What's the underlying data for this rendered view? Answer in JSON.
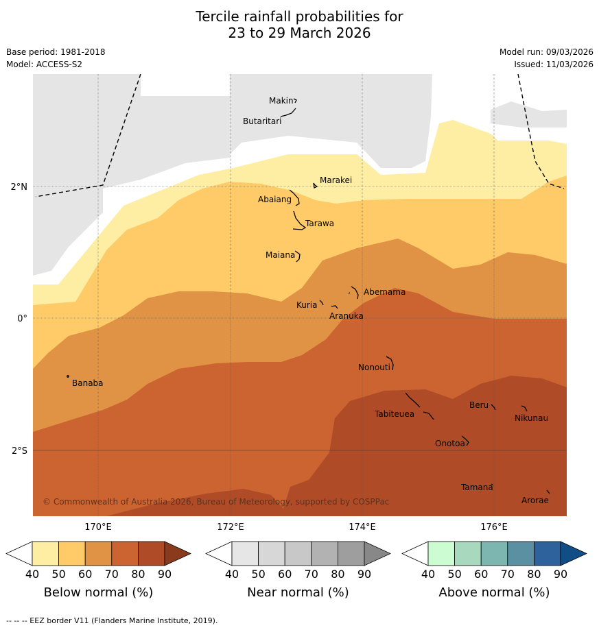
{
  "title": {
    "line1": "Tercile rainfall probabilities for",
    "line2": "23 to 29 March 2026"
  },
  "meta": {
    "base_period": "Base period: 1981-2018",
    "model": "Model: ACCESS-S2",
    "model_run": "Model run: 09/03/2026",
    "issued": "Issued: 11/03/2026"
  },
  "map": {
    "lat_labels": [
      "2°N",
      "0°",
      "2°S"
    ],
    "lon_labels": [
      "170°E",
      "172°E",
      "174°E",
      "176°E"
    ],
    "copyright": "© Commonwealth of Australia 2026, Bureau of Meteorology, supported by COSPPac",
    "islands": [
      "Makin",
      "Butaritari",
      "Marakei",
      "Abaiang",
      "Tarawa",
      "Maiana",
      "Abemama",
      "Kuria",
      "Aranuka",
      "Banaba",
      "Nonouti",
      "Beru",
      "Nikunau",
      "Tabiteuea",
      "Onotoa",
      "Tamana",
      "Arorae"
    ],
    "no_data_color": "#e5e5e5",
    "band_colors": [
      "#feeea4",
      "#fecb68",
      "#e09344",
      "#cc6431",
      "#b04b28"
    ]
  },
  "colorbars": [
    {
      "label": "Below normal (%)",
      "ticks": [
        "40",
        "50",
        "60",
        "70",
        "80",
        "90"
      ],
      "colors": [
        "#feeea4",
        "#fecb68",
        "#e09344",
        "#cc6431",
        "#b04b28",
        "#8a3b1e"
      ]
    },
    {
      "label": "Near normal (%)",
      "ticks": [
        "40",
        "50",
        "60",
        "70",
        "80",
        "90"
      ],
      "colors": [
        "#e6e6e6",
        "#d7d7d7",
        "#c8c8c8",
        "#b2b2b2",
        "#9e9e9e",
        "#888888"
      ]
    },
    {
      "label": "Above normal (%)",
      "ticks": [
        "40",
        "50",
        "60",
        "70",
        "80",
        "90"
      ],
      "colors": [
        "#ccfdd2",
        "#a8d9be",
        "#7db6b1",
        "#5a90a2",
        "#2e629c",
        "#124e86"
      ]
    }
  ],
  "footer": "--  --  -- EEZ border V11 (Flanders Marine Institute, 2019)."
}
